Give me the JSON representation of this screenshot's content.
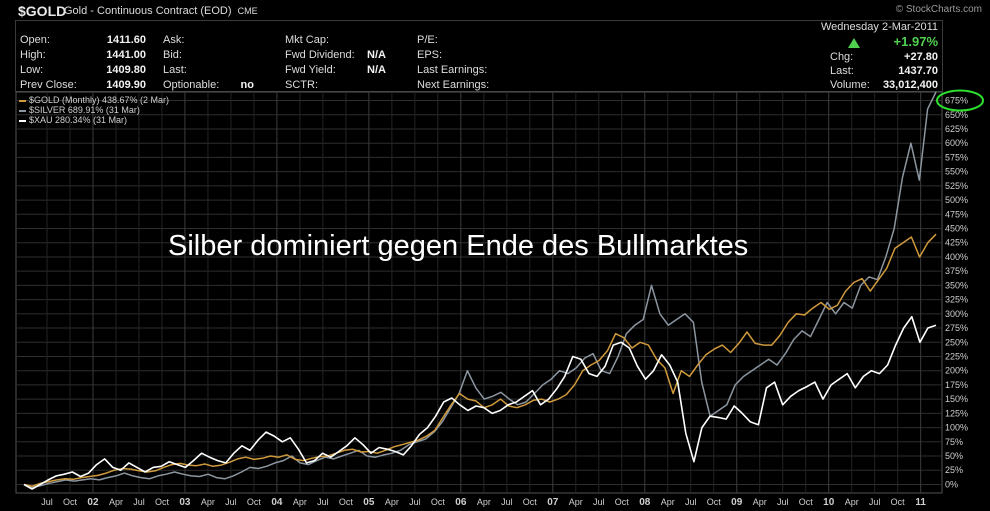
{
  "header": {
    "symbol": "$GOLD",
    "description": "Gold - Continuous Contract (EOD)",
    "exchange": "CME",
    "watermark": "© StockCharts.com"
  },
  "quote": {
    "date": "Wednesday  2-Mar-2011",
    "open_label": "Open:",
    "open": "1411.60",
    "high_label": "High:",
    "high": "1441.00",
    "low_label": "Low:",
    "low": "1409.80",
    "prev_label": "Prev Close:",
    "prev": "1409.90",
    "ask_label": "Ask:",
    "bid_label": "Bid:",
    "last_label": "Last:",
    "optionable_label": "Optionable:",
    "optionable": "no",
    "mktcap_label": "Mkt Cap:",
    "fwddiv_label": "Fwd Dividend:",
    "fwddiv": "N/A",
    "fwdyield_label": "Fwd Yield:",
    "fwdyield": "N/A",
    "sctr_label": "SCTR:",
    "pe_label": "P/E:",
    "eps_label": "EPS:",
    "lastearn_label": "Last Earnings:",
    "nextearn_label": "Next Earnings:",
    "chg_pct": "+1.97%",
    "chg_label": "Chg:",
    "chg": "+27.80",
    "last_r_label": "Last:",
    "last_r": "1437.70",
    "volume_label": "Volume:",
    "volume": "33,012,400",
    "up_color": "#4fd14f"
  },
  "annotation": "Silber dominiert gegen Ende des Bullmarktes",
  "chart_data": {
    "type": "line",
    "ylim": [
      -15,
      690
    ],
    "y_ticks": [
      0,
      25,
      50,
      75,
      100,
      125,
      150,
      175,
      200,
      225,
      250,
      275,
      300,
      325,
      350,
      375,
      400,
      425,
      450,
      475,
      500,
      525,
      550,
      575,
      600,
      625,
      650,
      675
    ],
    "y_tick_labels": [
      "0%",
      "25%",
      "50%",
      "75%",
      "100%",
      "125%",
      "150%",
      "175%",
      "200%",
      "225%",
      "250%",
      "275%",
      "300%",
      "325%",
      "350%",
      "375%",
      "400%",
      "425%",
      "450%",
      "475%",
      "500%",
      "525%",
      "550%",
      "575%",
      "600%",
      "625%",
      "650%",
      "675%"
    ],
    "x_start": "2001-04",
    "x_ticks": [
      {
        "label": "Jul",
        "m": 3
      },
      {
        "label": "Oct",
        "m": 6
      },
      {
        "label": "02",
        "m": 9,
        "year": true
      },
      {
        "label": "Apr",
        "m": 12
      },
      {
        "label": "Jul",
        "m": 15
      },
      {
        "label": "Oct",
        "m": 18
      },
      {
        "label": "03",
        "m": 21,
        "year": true
      },
      {
        "label": "Apr",
        "m": 24
      },
      {
        "label": "Jul",
        "m": 27
      },
      {
        "label": "Oct",
        "m": 30
      },
      {
        "label": "04",
        "m": 33,
        "year": true
      },
      {
        "label": "Apr",
        "m": 36
      },
      {
        "label": "Jul",
        "m": 39
      },
      {
        "label": "Oct",
        "m": 42
      },
      {
        "label": "05",
        "m": 45,
        "year": true
      },
      {
        "label": "Apr",
        "m": 48
      },
      {
        "label": "Jul",
        "m": 51
      },
      {
        "label": "Oct",
        "m": 54
      },
      {
        "label": "06",
        "m": 57,
        "year": true
      },
      {
        "label": "Apr",
        "m": 60
      },
      {
        "label": "Jul",
        "m": 63
      },
      {
        "label": "Oct",
        "m": 66
      },
      {
        "label": "07",
        "m": 69,
        "year": true
      },
      {
        "label": "Apr",
        "m": 72
      },
      {
        "label": "Jul",
        "m": 75
      },
      {
        "label": "Oct",
        "m": 78
      },
      {
        "label": "08",
        "m": 81,
        "year": true
      },
      {
        "label": "Apr",
        "m": 84
      },
      {
        "label": "Jul",
        "m": 87
      },
      {
        "label": "Oct",
        "m": 90
      },
      {
        "label": "09",
        "m": 93,
        "year": true
      },
      {
        "label": "Apr",
        "m": 96
      },
      {
        "label": "Jul",
        "m": 99
      },
      {
        "label": "Oct",
        "m": 102
      },
      {
        "label": "10",
        "m": 105,
        "year": true
      },
      {
        "label": "Apr",
        "m": 108
      },
      {
        "label": "Jul",
        "m": 111
      },
      {
        "label": "Oct",
        "m": 114
      },
      {
        "label": "11",
        "m": 117,
        "year": true
      }
    ],
    "grid": true,
    "legend_position": "top-left",
    "series": [
      {
        "name": "$GOLD (Monthly) 438.67% (2 Mar)",
        "color": "#d09a3c",
        "values": [
          0,
          -3,
          2,
          5,
          8,
          10,
          9,
          12,
          14,
          16,
          20,
          25,
          28,
          27,
          24,
          22,
          24,
          30,
          35,
          37,
          34,
          33,
          36,
          32,
          34,
          39,
          45,
          48,
          44,
          46,
          50,
          48,
          52,
          44,
          42,
          46,
          49,
          50,
          55,
          60,
          62,
          57,
          58,
          55,
          60,
          66,
          70,
          74,
          78,
          85,
          95,
          118,
          140,
          160,
          150,
          147,
          135,
          140,
          150,
          138,
          135,
          140,
          148,
          150,
          145,
          150,
          158,
          175,
          200,
          210,
          218,
          235,
          265,
          258,
          240,
          250,
          245,
          220,
          205,
          160,
          200,
          190,
          210,
          228,
          238,
          245,
          232,
          248,
          268,
          248,
          245,
          245,
          262,
          285,
          300,
          298,
          310,
          320,
          308,
          315,
          340,
          355,
          362,
          340,
          360,
          380,
          415,
          425,
          435,
          400,
          425,
          440
        ]
      },
      {
        "name": "$SILVER 689.91% (31 Mar)",
        "color": "#8c96a0",
        "values": [
          0,
          -5,
          -2,
          2,
          5,
          8,
          6,
          8,
          10,
          8,
          12,
          15,
          20,
          15,
          12,
          10,
          15,
          18,
          22,
          18,
          15,
          14,
          18,
          12,
          10,
          15,
          22,
          30,
          28,
          32,
          38,
          42,
          50,
          38,
          35,
          42,
          48,
          45,
          50,
          55,
          60,
          50,
          48,
          52,
          55,
          60,
          70,
          75,
          80,
          92,
          110,
          135,
          160,
          200,
          170,
          150,
          155,
          162,
          150,
          140,
          145,
          160,
          175,
          185,
          200,
          195,
          205,
          222,
          230,
          200,
          195,
          225,
          265,
          280,
          290,
          350,
          300,
          280,
          290,
          300,
          285,
          180,
          120,
          130,
          140,
          175,
          190,
          200,
          210,
          220,
          210,
          230,
          255,
          270,
          260,
          290,
          320,
          300,
          320,
          310,
          350,
          365,
          360,
          400,
          450,
          540,
          600,
          535,
          660,
          690
        ]
      },
      {
        "name": "$XAU 280.34% (31 Mar)",
        "color": "#ffffff",
        "values": [
          0,
          -8,
          0,
          8,
          15,
          18,
          22,
          14,
          20,
          35,
          45,
          30,
          25,
          38,
          30,
          22,
          30,
          32,
          40,
          35,
          30,
          42,
          55,
          48,
          42,
          38,
          55,
          68,
          60,
          78,
          92,
          85,
          75,
          82,
          62,
          38,
          42,
          55,
          48,
          58,
          68,
          82,
          70,
          55,
          65,
          62,
          58,
          52,
          68,
          88,
          100,
          120,
          145,
          152,
          140,
          130,
          138,
          135,
          125,
          130,
          140,
          145,
          155,
          165,
          140,
          150,
          168,
          190,
          225,
          220,
          195,
          190,
          208,
          245,
          250,
          240,
          208,
          185,
          200,
          228,
          210,
          180,
          90,
          40,
          100,
          120,
          118,
          115,
          138,
          125,
          110,
          105,
          170,
          180,
          140,
          155,
          165,
          172,
          180,
          150,
          175,
          185,
          195,
          170,
          190,
          200,
          195,
          210,
          245,
          275,
          295,
          250,
          275,
          280
        ]
      }
    ]
  }
}
